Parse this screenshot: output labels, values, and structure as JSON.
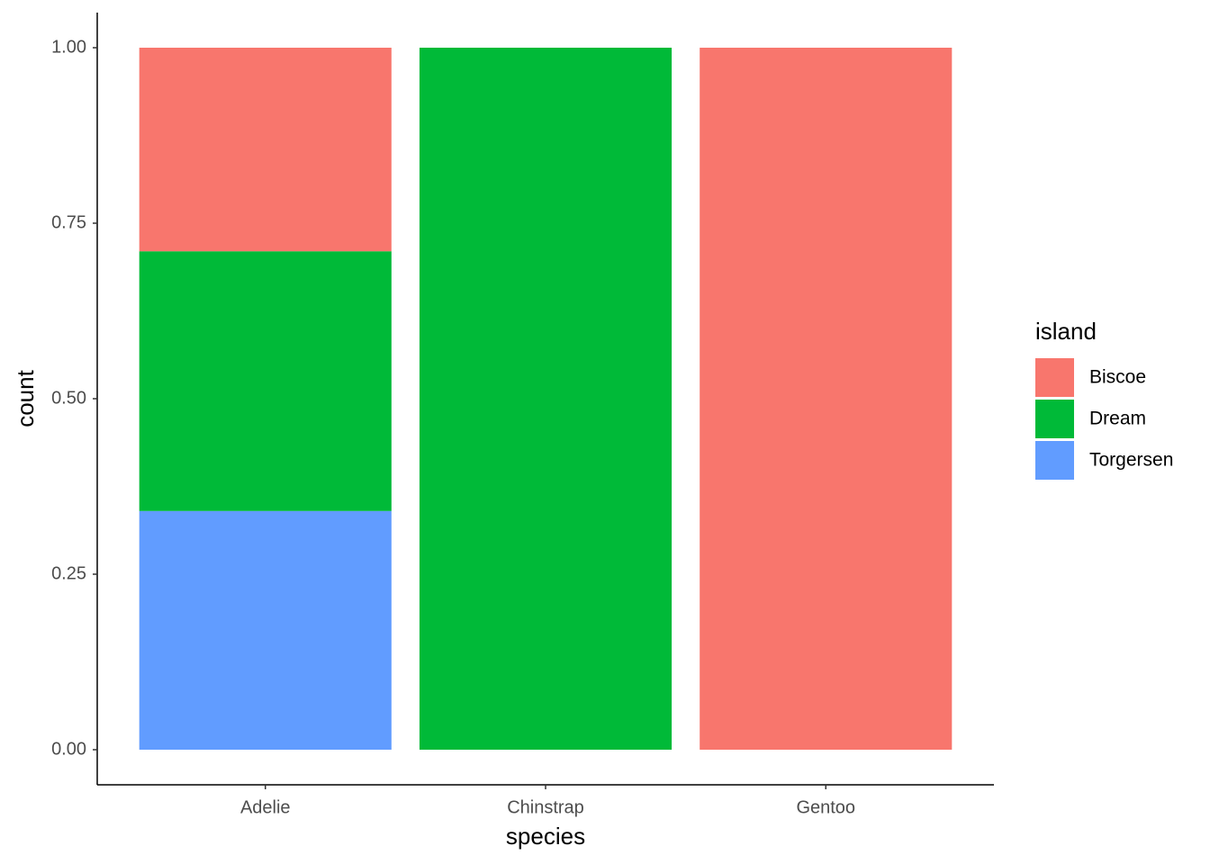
{
  "chart_data": {
    "type": "stacked_bar",
    "x_label": "species",
    "y_label": "count",
    "categories": [
      "Adelie",
      "Chinstrap",
      "Gentoo"
    ],
    "series": [
      {
        "name": "Biscoe",
        "color": "#F8766D",
        "values": [
          0.29,
          0,
          1
        ]
      },
      {
        "name": "Dream",
        "color": "#00BA38",
        "values": [
          0.37,
          1,
          0
        ]
      },
      {
        "name": "Torgersen",
        "color": "#619CFF",
        "values": [
          0.34,
          0,
          0
        ]
      }
    ],
    "legend_title": "island",
    "legend_position": "right",
    "ylim": [
      -0.05,
      1.05
    ],
    "yticks": [
      {
        "value": 0,
        "label": "0.00"
      },
      {
        "value": 0.25,
        "label": "0.25"
      },
      {
        "value": 0.5,
        "label": "0.50"
      },
      {
        "value": 0.75,
        "label": "0.75"
      },
      {
        "value": 1,
        "label": "1.00"
      }
    ],
    "grid": false
  }
}
